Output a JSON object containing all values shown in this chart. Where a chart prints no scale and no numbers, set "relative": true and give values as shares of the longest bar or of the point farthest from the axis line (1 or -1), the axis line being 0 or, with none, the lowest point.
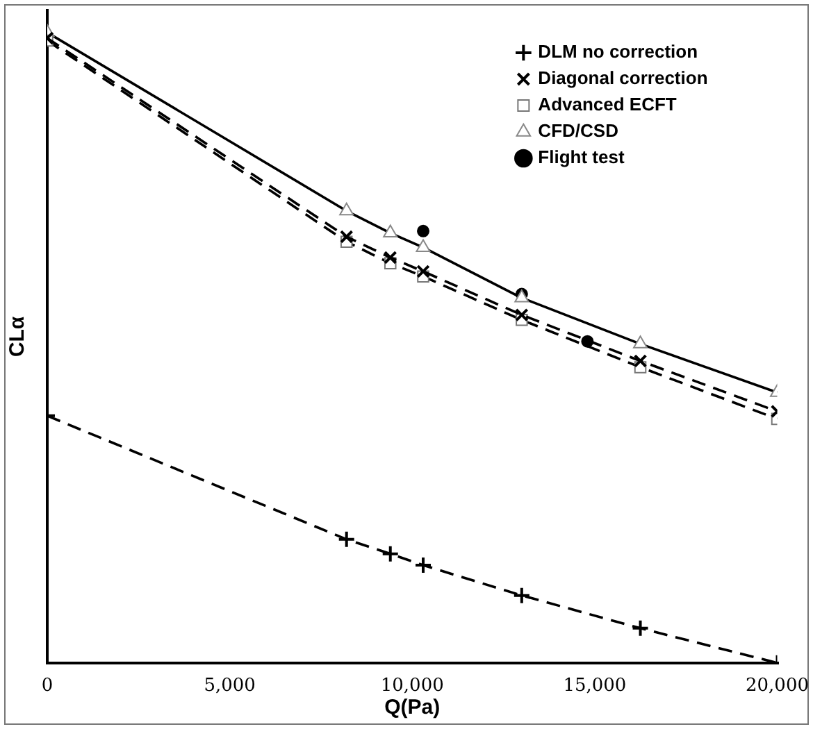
{
  "chart_data": {
    "type": "line",
    "xlabel": "Q(Pa)",
    "ylabel": "CLα",
    "relative": true,
    "grid": false,
    "legend": "top right",
    "x": [
      0,
      8200,
      9400,
      10300,
      13000,
      16250,
      20000
    ],
    "xlim": [
      0,
      20000
    ],
    "xticks": [
      0,
      {
        "value": 5000,
        "label": "5,000"
      },
      {
        "value": 10000,
        "label": "10,000"
      },
      {
        "value": 15000,
        "label": "15,000"
      },
      {
        "value": 20000,
        "label": "20,000"
      }
    ],
    "series": [
      {
        "name": "DLM no correction",
        "color": "#000000",
        "line_style": "dashed",
        "marker": "plus",
        "values": [
          0.392,
          0.196,
          0.173,
          0.155,
          0.107,
          0.055,
          0
        ]
      },
      {
        "name": "Diagonal correction",
        "color": "#000000",
        "line_style": "dashed",
        "marker": "cross",
        "values": [
          0.991,
          0.676,
          0.643,
          0.621,
          0.552,
          0.479,
          0.399
        ]
      },
      {
        "name": "Advanced ECFT",
        "color": "#000000",
        "line_style": "dashed",
        "marker": "square",
        "values": [
          0.987,
          0.668,
          0.634,
          0.613,
          0.544,
          0.469,
          0.387
        ]
      },
      {
        "name": "CFD/CSD",
        "color": "#000000",
        "line_style": "solid",
        "marker": "triangle",
        "values": [
          1,
          0.717,
          0.682,
          0.659,
          0.579,
          0.506,
          0.429
        ]
      },
      {
        "name": "Flight test",
        "type": "scatter",
        "color": "#000000",
        "marker": "circle",
        "x": [
          10300,
          13000,
          14800
        ],
        "values": [
          0.685,
          0.585,
          0.51
        ]
      }
    ]
  }
}
